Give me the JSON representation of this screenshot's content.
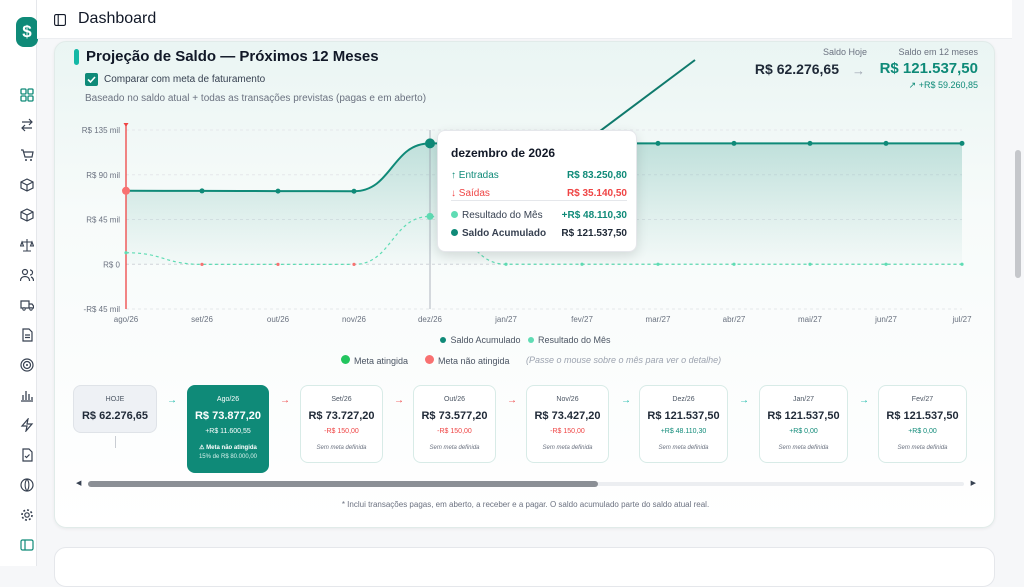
{
  "app": {
    "logo_glyph": "$",
    "page_title": "Dashboard"
  },
  "sidebar": {
    "icons": [
      "dashboard-icon",
      "transactions-icon",
      "cart-icon",
      "box-icon",
      "package-icon",
      "scale-icon",
      "users-icon",
      "truck-icon",
      "document-icon",
      "target-icon",
      "bar-chart-icon",
      "bolt-icon",
      "file-icon",
      "globe-icon",
      "settings-icon",
      "sidebar-toggle-icon"
    ]
  },
  "card": {
    "title": "Projeção de Saldo — Próximos 12 Meses",
    "compare_label": "Comparar com meta de faturamento",
    "compare_checked": true,
    "subtitle": "Baseado no saldo atual + todas as transações previstas (pagas e em aberto)",
    "saldo_hoje_label": "Saldo Hoje",
    "saldo_hoje_value": "R$ 62.276,65",
    "saldo_12_label": "Saldo em 12 meses",
    "saldo_12_value": "R$ 121.537,50",
    "saldo_12_delta": "+R$ 59.260,85"
  },
  "chart_data": {
    "type": "line",
    "categories": [
      "ago/26",
      "set/26",
      "out/26",
      "nov/26",
      "dez/26",
      "jan/27",
      "fev/27",
      "mar/27",
      "abr/27",
      "mai/27",
      "jun/27",
      "jul/27"
    ],
    "y_ticks": [
      "R$ 135 mil",
      "R$ 90 mil",
      "R$ 45 mil",
      "R$ 0",
      "-R$ 45 mil"
    ],
    "ylim": [
      -45000,
      135000
    ],
    "series": [
      {
        "name": "Saldo Acumulado",
        "color": "#0f8a78",
        "values": [
          73877.2,
          73727.2,
          73577.2,
          73427.2,
          121537.5,
          121537.5,
          121537.5,
          121537.5,
          121537.5,
          121537.5,
          121537.5,
          121537.5
        ]
      },
      {
        "name": "Resultado do Mês",
        "color": "#5fdcb4",
        "values": [
          11600.55,
          -150,
          -150,
          -150,
          48110.3,
          0,
          0,
          0,
          0,
          0,
          0,
          0
        ]
      }
    ],
    "legend": "bottom-center",
    "grid": true
  },
  "tooltip": {
    "title": "dezembro de 2026",
    "entradas_label": "↑ Entradas",
    "entradas_value": "R$ 83.250,80",
    "saidas_label": "↓ Saídas",
    "saidas_value": "R$ 35.140,50",
    "resultado_label": "Resultado do Mês",
    "resultado_value": "+R$ 48.110,30",
    "saldo_label": "Saldo Acumulado",
    "saldo_value": "R$ 121.537,50"
  },
  "legend2": {
    "met": "Meta atingida",
    "not_met": "Meta não atingida",
    "hint": "(Passe o mouse sobre o mês para ver o detalhe)"
  },
  "months": [
    {
      "name": "HOJE",
      "value": "R$ 62.276,65"
    },
    {
      "name": "Ago/26",
      "value": "R$ 73.877,20",
      "delta": "+R$ 11.600,55",
      "status": "⚠ Meta não atingida",
      "pct": "15% de R$ 80.000,00"
    },
    {
      "name": "Set/26",
      "value": "R$ 73.727,20",
      "delta": "-R$ 150,00",
      "note": "Sem meta definida"
    },
    {
      "name": "Out/26",
      "value": "R$ 73.577,20",
      "delta": "-R$ 150,00",
      "note": "Sem meta definida"
    },
    {
      "name": "Nov/26",
      "value": "R$ 73.427,20",
      "delta": "-R$ 150,00",
      "note": "Sem meta definida"
    },
    {
      "name": "Dez/26",
      "value": "R$ 121.537,50",
      "delta": "+R$ 48.110,30",
      "note": "Sem meta definida"
    },
    {
      "name": "Jan/27",
      "value": "R$ 121.537,50",
      "delta": "+R$ 0,00",
      "note": "Sem meta definida"
    },
    {
      "name": "Fev/27",
      "value": "R$ 121.537,50",
      "delta": "+R$ 0,00",
      "note": "Sem meta definida"
    }
  ],
  "footnote": "* Inclui transações pagas, em aberto, a receber e a pagar. O saldo acumulado parte do saldo atual real."
}
